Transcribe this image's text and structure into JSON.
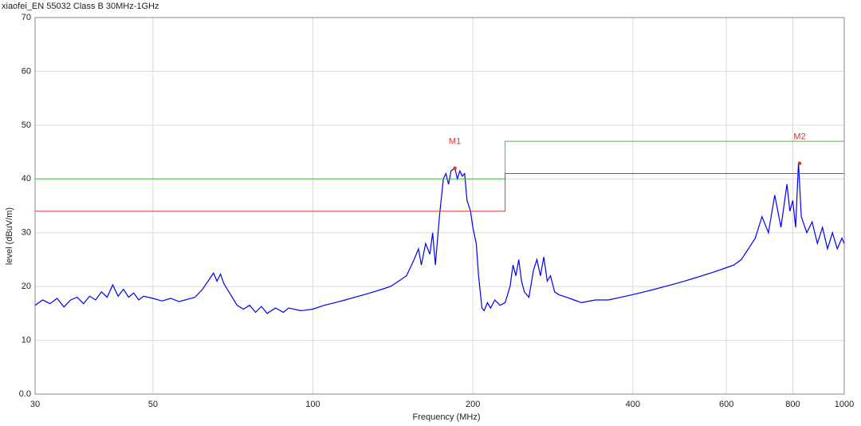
{
  "chart_data": {
    "type": "line",
    "title": "xiaofei_EN 55032 Class B 30MHz-1GHz",
    "x_label": "Frequency (MHz)",
    "y_label": "level (dBuV/m)",
    "xscale": "log",
    "xlim": [
      30,
      1000
    ],
    "ylim": [
      0,
      70
    ],
    "xticks": [
      30,
      50,
      100,
      200,
      400,
      600,
      800,
      1000
    ],
    "yticks": [
      {
        "value": 0,
        "label": "0.0"
      },
      10,
      20,
      30,
      40,
      50,
      60,
      70
    ],
    "grid": true,
    "series": [
      {
        "color": "#0000ee",
        "x": [
          30,
          31,
          32,
          33,
          34,
          35,
          36,
          37,
          38,
          39,
          40,
          41,
          42,
          43,
          44,
          45,
          46,
          47,
          48,
          50,
          52,
          54,
          56,
          58,
          60,
          62,
          64,
          65,
          66,
          67,
          68,
          70,
          72,
          74,
          76,
          78,
          80,
          82,
          85,
          88,
          90,
          95,
          100,
          105,
          110,
          115,
          120,
          125,
          130,
          135,
          140,
          145,
          150,
          155,
          158,
          160,
          163,
          166,
          168,
          170,
          173,
          176,
          178,
          180,
          182,
          185,
          187,
          189,
          191,
          193,
          195,
          198,
          200,
          203,
          205,
          208,
          210,
          213,
          216,
          220,
          225,
          230,
          235,
          238,
          241,
          244,
          247,
          250,
          255,
          260,
          264,
          268,
          272,
          276,
          280,
          285,
          290,
          300,
          310,
          320,
          340,
          360,
          380,
          400,
          420,
          440,
          460,
          480,
          500,
          520,
          540,
          560,
          580,
          600,
          620,
          640,
          660,
          680,
          700,
          720,
          740,
          760,
          780,
          790,
          800,
          810,
          820,
          830,
          850,
          870,
          890,
          910,
          930,
          950,
          970,
          990,
          1000
        ],
        "values": [
          16.5,
          17.5,
          16.8,
          17.8,
          16.2,
          17.5,
          18,
          16.8,
          18.2,
          17.5,
          19,
          18,
          20.3,
          18.2,
          19.5,
          18,
          18.8,
          17.5,
          18.2,
          17.8,
          17.3,
          17.8,
          17.2,
          17.6,
          18,
          19.5,
          21.5,
          22.5,
          21,
          22.3,
          20.5,
          18.5,
          16.5,
          15.8,
          16.5,
          15.2,
          16.3,
          15,
          16,
          15.2,
          16,
          15.5,
          15.8,
          16.5,
          17,
          17.5,
          18,
          18.5,
          19,
          19.5,
          20,
          21,
          22,
          25,
          27,
          24,
          28,
          26,
          30,
          24,
          33,
          40,
          41,
          39,
          41.5,
          42,
          40,
          41.5,
          40.5,
          41,
          36,
          34,
          31,
          28,
          22,
          16,
          15.5,
          17,
          16,
          17.5,
          16.5,
          17,
          20,
          24,
          22,
          25,
          21,
          19,
          18,
          23,
          25,
          22,
          25.5,
          21,
          22,
          19,
          18.5,
          18,
          17.5,
          17,
          17.5,
          17.5,
          18,
          18.5,
          19,
          19.5,
          20,
          20.5,
          21,
          21.5,
          22,
          22.5,
          23,
          23.5,
          24,
          25,
          27,
          29,
          33,
          30,
          37,
          31,
          39,
          34,
          36,
          31,
          43,
          33,
          30,
          32,
          28,
          31,
          27,
          30,
          27,
          29,
          28
        ]
      },
      {
        "color": "#4cb84c",
        "x": [
          30,
          230,
          230,
          1000
        ],
        "values": [
          40,
          40,
          47,
          47
        ]
      },
      {
        "color": "#c8402c",
        "x": [
          30,
          230,
          230,
          1000
        ],
        "values": [
          34,
          34,
          41,
          41
        ]
      }
    ],
    "markers": [
      {
        "label": "M1",
        "x": 185,
        "y": 42,
        "color": "#e03030"
      },
      {
        "label": "M2",
        "x": 824,
        "y": 42.9,
        "color": "#e03030"
      }
    ]
  }
}
